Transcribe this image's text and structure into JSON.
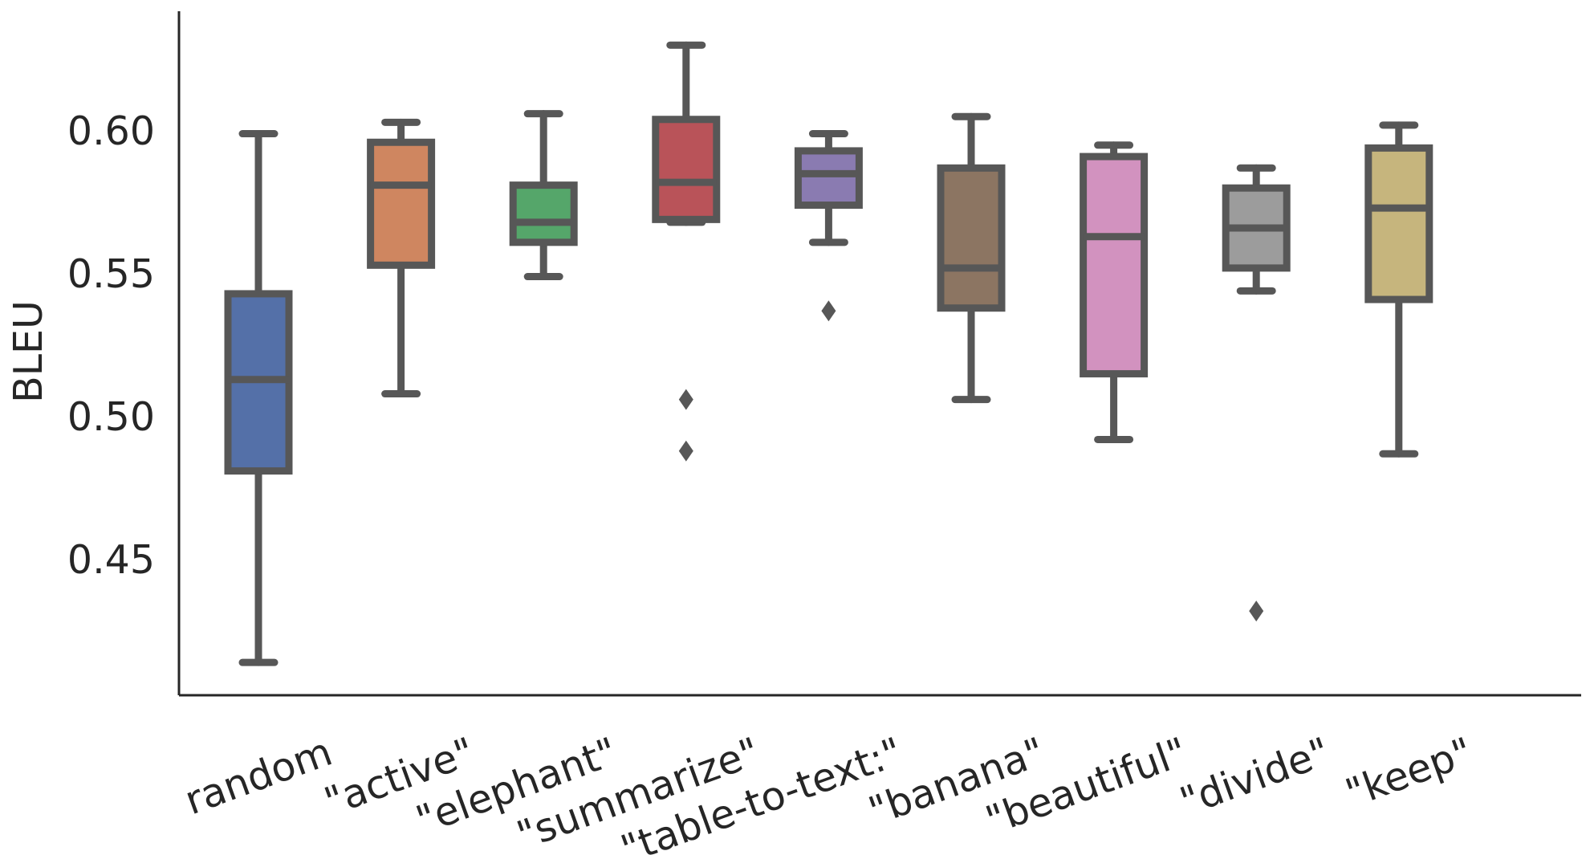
{
  "chart_data": {
    "type": "box",
    "title": "",
    "xlabel": "",
    "ylabel": "BLEU",
    "ylim": [
      0.405,
      0.645
    ],
    "yticks": [
      0.45,
      0.5,
      0.55,
      0.6
    ],
    "ytick_labels": [
      "0.45",
      "0.50",
      "0.55",
      "0.60"
    ],
    "grid": false,
    "categories": [
      "random",
      "\"active\"",
      "\"elephant\"",
      "\"summarize\"",
      "\"table-to-text:\"",
      "\"banana\"",
      "\"beautiful\"",
      "\"divide\"",
      "\"keep\""
    ],
    "boxes": [
      {
        "label": "random",
        "color": "#5470a8",
        "whisker_low": 0.414,
        "q1": 0.481,
        "median": 0.513,
        "q3": 0.543,
        "whisker_high": 0.599,
        "fliers": []
      },
      {
        "label": "\"active\"",
        "color": "#cf8660",
        "whisker_low": 0.508,
        "q1": 0.553,
        "median": 0.581,
        "q3": 0.596,
        "whisker_high": 0.603,
        "fliers": []
      },
      {
        "label": "\"elephant\"",
        "color": "#55a66a",
        "whisker_low": 0.549,
        "q1": 0.561,
        "median": 0.568,
        "q3": 0.581,
        "whisker_high": 0.606,
        "fliers": []
      },
      {
        "label": "\"summarize\"",
        "color": "#b95359",
        "whisker_low": 0.568,
        "q1": 0.569,
        "median": 0.582,
        "q3": 0.604,
        "whisker_high": 0.63,
        "fliers": [
          0.506,
          0.488
        ]
      },
      {
        "label": "\"table-to-text:\"",
        "color": "#8a7bb1",
        "whisker_low": 0.561,
        "q1": 0.574,
        "median": 0.585,
        "q3": 0.593,
        "whisker_high": 0.599,
        "fliers": [
          0.537
        ]
      },
      {
        "label": "\"banana\"",
        "color": "#8c7562",
        "whisker_low": 0.506,
        "q1": 0.538,
        "median": 0.552,
        "q3": 0.587,
        "whisker_high": 0.605,
        "fliers": []
      },
      {
        "label": "\"beautiful\"",
        "color": "#d292bf",
        "whisker_low": 0.492,
        "q1": 0.515,
        "median": 0.563,
        "q3": 0.591,
        "whisker_high": 0.595,
        "fliers": []
      },
      {
        "label": "\"divide\"",
        "color": "#9c9c9c",
        "whisker_low": 0.544,
        "q1": 0.552,
        "median": 0.566,
        "q3": 0.58,
        "whisker_high": 0.587,
        "fliers": [
          0.432
        ]
      },
      {
        "label": "\"keep\"",
        "color": "#c6b57d",
        "whisker_low": 0.487,
        "q1": 0.541,
        "median": 0.573,
        "q3": 0.594,
        "whisker_high": 0.602,
        "fliers": []
      }
    ]
  }
}
